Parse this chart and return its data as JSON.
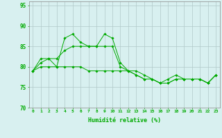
{
  "title": "",
  "xlabel": "Humidité relative (%)",
  "ylabel": "",
  "background_color": "#d8f0f0",
  "grid_color": "#b0c8c8",
  "line_color": "#00aa00",
  "xlim": [
    -0.5,
    23.5
  ],
  "ylim": [
    70,
    96
  ],
  "yticks": [
    70,
    75,
    80,
    85,
    90,
    95
  ],
  "xticks": [
    0,
    1,
    2,
    3,
    4,
    5,
    6,
    7,
    8,
    9,
    10,
    11,
    12,
    13,
    14,
    15,
    16,
    17,
    18,
    19,
    20,
    21,
    22,
    23
  ],
  "series1": [
    79,
    81,
    82,
    80,
    87,
    88,
    86,
    85,
    85,
    88,
    87,
    81,
    79,
    79,
    78,
    77,
    76,
    77,
    78,
    77,
    77,
    77,
    76,
    78
  ],
  "series2": [
    79,
    82,
    82,
    82,
    84,
    85,
    85,
    85,
    85,
    85,
    85,
    80,
    79,
    78,
    77,
    77,
    76,
    76,
    77,
    77,
    77,
    77,
    76,
    78
  ],
  "series3": [
    79,
    80,
    80,
    80,
    80,
    80,
    80,
    79,
    79,
    79,
    79,
    79,
    79,
    78,
    77,
    77,
    76,
    76,
    77,
    77,
    77,
    77,
    76,
    78
  ]
}
